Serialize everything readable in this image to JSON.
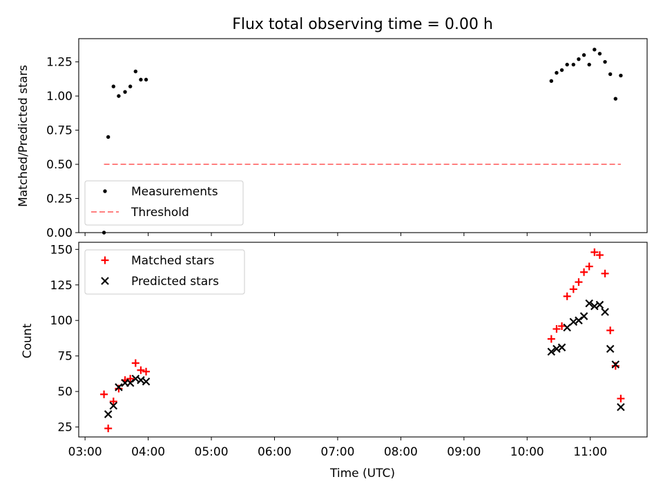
{
  "chart_data": [
    {
      "type": "scatter",
      "title": "Flux total observing time = 0.00 h",
      "xlabel": "",
      "ylabel": "Matched/Predicted stars",
      "ylim": [
        0,
        1.42
      ],
      "yticks": [
        "0.00",
        "0.25",
        "0.50",
        "0.75",
        "1.00",
        "1.25"
      ],
      "legend_position": "lower-left",
      "series": [
        {
          "name": "Measurements",
          "color": "#000000",
          "marker": "dot",
          "x": [
            "03:18",
            "03:22",
            "03:27",
            "03:32",
            "03:38",
            "03:43",
            "03:48",
            "03:53",
            "03:58",
            "10:23",
            "10:28",
            "10:33",
            "10:38",
            "10:44",
            "10:49",
            "10:54",
            "10:59",
            "11:04",
            "11:09",
            "11:14",
            "11:19",
            "11:24",
            "11:29"
          ],
          "y": [
            0.0,
            0.7,
            1.07,
            1.0,
            1.03,
            1.07,
            1.18,
            1.12,
            1.12,
            1.11,
            1.17,
            1.19,
            1.23,
            1.23,
            1.27,
            1.3,
            1.23,
            1.34,
            1.31,
            1.25,
            1.16,
            0.98,
            1.15
          ]
        },
        {
          "name": "Threshold",
          "color": "#ff7f7f",
          "style": "dashed",
          "x": [
            "03:18",
            "11:29"
          ],
          "y": [
            0.5,
            0.5
          ]
        }
      ]
    },
    {
      "type": "scatter",
      "xlabel": "Time (UTC)",
      "ylabel": "Count",
      "ylim": [
        18,
        155
      ],
      "yticks": [
        "25",
        "50",
        "75",
        "100",
        "125",
        "150"
      ],
      "xticks": [
        "03:00",
        "04:00",
        "05:00",
        "06:00",
        "07:00",
        "08:00",
        "09:00",
        "10:00",
        "11:00"
      ],
      "xlim": [
        "02:54",
        "11:54"
      ],
      "legend_position": "top-left",
      "series": [
        {
          "name": "Matched stars",
          "color": "#ff0000",
          "marker": "plus",
          "x": [
            "03:18",
            "03:22",
            "03:27",
            "03:32",
            "03:38",
            "03:43",
            "03:48",
            "03:53",
            "03:58",
            "10:23",
            "10:28",
            "10:33",
            "10:38",
            "10:44",
            "10:49",
            "10:54",
            "10:59",
            "11:04",
            "11:09",
            "11:14",
            "11:19",
            "11:24",
            "11:29"
          ],
          "y": [
            48,
            24,
            43,
            52,
            58,
            59,
            70,
            65,
            64,
            87,
            94,
            96,
            117,
            122,
            127,
            134,
            138,
            148,
            146,
            133,
            93,
            68,
            45
          ]
        },
        {
          "name": "Predicted stars",
          "color": "#000000",
          "marker": "x",
          "x": [
            "03:22",
            "03:27",
            "03:32",
            "03:38",
            "03:43",
            "03:48",
            "03:53",
            "03:58",
            "10:23",
            "10:28",
            "10:33",
            "10:38",
            "10:44",
            "10:49",
            "10:54",
            "10:59",
            "11:04",
            "11:09",
            "11:14",
            "11:19",
            "11:24",
            "11:29"
          ],
          "y": [
            34,
            40,
            53,
            56,
            56,
            59,
            58,
            57,
            78,
            80,
            81,
            95,
            99,
            100,
            103,
            112,
            110,
            111,
            106,
            80,
            69,
            39
          ]
        }
      ]
    }
  ]
}
